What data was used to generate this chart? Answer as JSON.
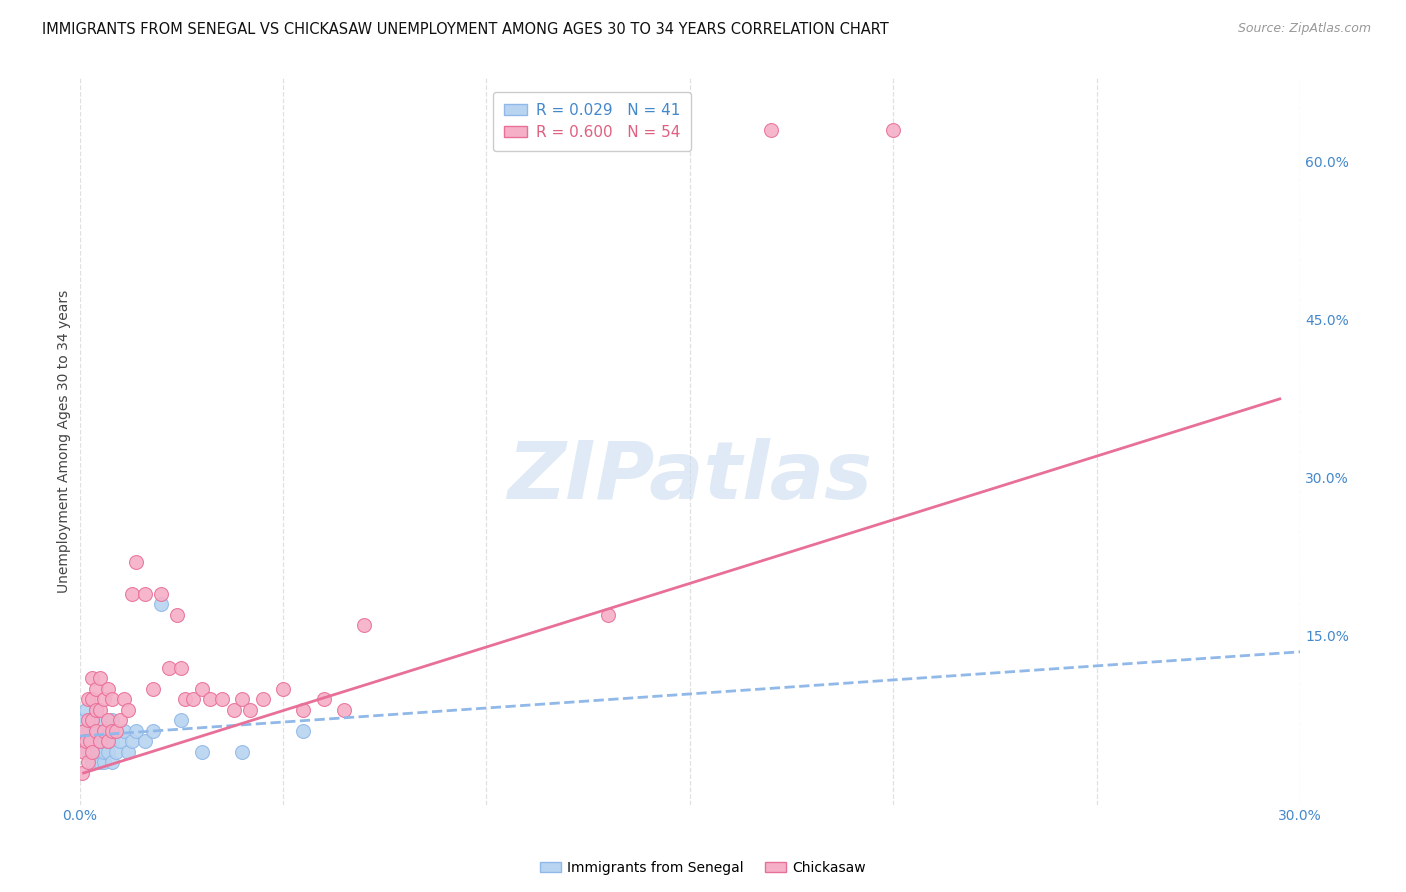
{
  "title": "IMMIGRANTS FROM SENEGAL VS CHICKASAW UNEMPLOYMENT AMONG AGES 30 TO 34 YEARS CORRELATION CHART",
  "source": "Source: ZipAtlas.com",
  "ylabel": "Unemployment Among Ages 30 to 34 years",
  "xlim": [
    0.0,
    0.3
  ],
  "ylim": [
    -0.01,
    0.68
  ],
  "xticks": [
    0.0,
    0.05,
    0.1,
    0.15,
    0.2,
    0.25,
    0.3
  ],
  "right_yticks": [
    0.15,
    0.3,
    0.45,
    0.6
  ],
  "right_yticklabels": [
    "15.0%",
    "30.0%",
    "45.0%",
    "60.0%"
  ],
  "legend_R1": "0.029",
  "legend_N1": "41",
  "legend_R2": "0.600",
  "legend_N2": "54",
  "color_blue": "#b8d4f0",
  "color_pink": "#f5b0c8",
  "color_blue_edge": "#90b8e8",
  "color_pink_edge": "#e87098",
  "color_blue_line": "#90b8e8",
  "color_pink_line": "#e87098",
  "color_blue_text": "#4488cc",
  "color_pink_text": "#e06080",
  "grid_color": "#e0e0e0",
  "bg_color": "#ffffff",
  "blue_scatter_x": [
    0.0008,
    0.001,
    0.0015,
    0.002,
    0.002,
    0.0025,
    0.003,
    0.003,
    0.003,
    0.0035,
    0.004,
    0.004,
    0.004,
    0.004,
    0.005,
    0.005,
    0.005,
    0.005,
    0.006,
    0.006,
    0.006,
    0.006,
    0.007,
    0.007,
    0.007,
    0.008,
    0.008,
    0.008,
    0.009,
    0.01,
    0.011,
    0.012,
    0.013,
    0.014,
    0.016,
    0.018,
    0.02,
    0.025,
    0.03,
    0.04,
    0.055
  ],
  "blue_scatter_y": [
    0.05,
    0.07,
    0.08,
    0.04,
    0.06,
    0.05,
    0.03,
    0.05,
    0.07,
    0.06,
    0.04,
    0.05,
    0.06,
    0.08,
    0.03,
    0.04,
    0.05,
    0.07,
    0.03,
    0.04,
    0.05,
    0.06,
    0.04,
    0.05,
    0.06,
    0.03,
    0.05,
    0.07,
    0.04,
    0.05,
    0.06,
    0.04,
    0.05,
    0.06,
    0.05,
    0.06,
    0.18,
    0.07,
    0.04,
    0.04,
    0.06
  ],
  "pink_scatter_x": [
    0.0005,
    0.001,
    0.001,
    0.0015,
    0.002,
    0.002,
    0.002,
    0.0025,
    0.003,
    0.003,
    0.003,
    0.003,
    0.004,
    0.004,
    0.004,
    0.005,
    0.005,
    0.005,
    0.006,
    0.006,
    0.007,
    0.007,
    0.007,
    0.008,
    0.008,
    0.009,
    0.01,
    0.011,
    0.012,
    0.013,
    0.014,
    0.016,
    0.018,
    0.02,
    0.022,
    0.024,
    0.025,
    0.026,
    0.028,
    0.03,
    0.032,
    0.035,
    0.038,
    0.04,
    0.042,
    0.045,
    0.05,
    0.055,
    0.06,
    0.065,
    0.07,
    0.13,
    0.17,
    0.2
  ],
  "pink_scatter_y": [
    0.02,
    0.04,
    0.06,
    0.05,
    0.03,
    0.07,
    0.09,
    0.05,
    0.04,
    0.07,
    0.09,
    0.11,
    0.06,
    0.08,
    0.1,
    0.05,
    0.08,
    0.11,
    0.06,
    0.09,
    0.05,
    0.07,
    0.1,
    0.06,
    0.09,
    0.06,
    0.07,
    0.09,
    0.08,
    0.19,
    0.22,
    0.19,
    0.1,
    0.19,
    0.12,
    0.17,
    0.12,
    0.09,
    0.09,
    0.1,
    0.09,
    0.09,
    0.08,
    0.09,
    0.08,
    0.09,
    0.1,
    0.08,
    0.09,
    0.08,
    0.16,
    0.17,
    0.63,
    0.63
  ],
  "blue_line_x": [
    0.0,
    0.3
  ],
  "blue_line_y": [
    0.055,
    0.135
  ],
  "pink_line_x": [
    0.001,
    0.295
  ],
  "pink_line_y": [
    0.02,
    0.375
  ],
  "title_fontsize": 10.5,
  "label_fontsize": 10,
  "tick_fontsize": 10,
  "legend_fontsize": 11,
  "scatter_size": 100,
  "watermark_text": "ZIPatlas",
  "watermark_color": "#ccddf0",
  "watermark_alpha": 0.6
}
